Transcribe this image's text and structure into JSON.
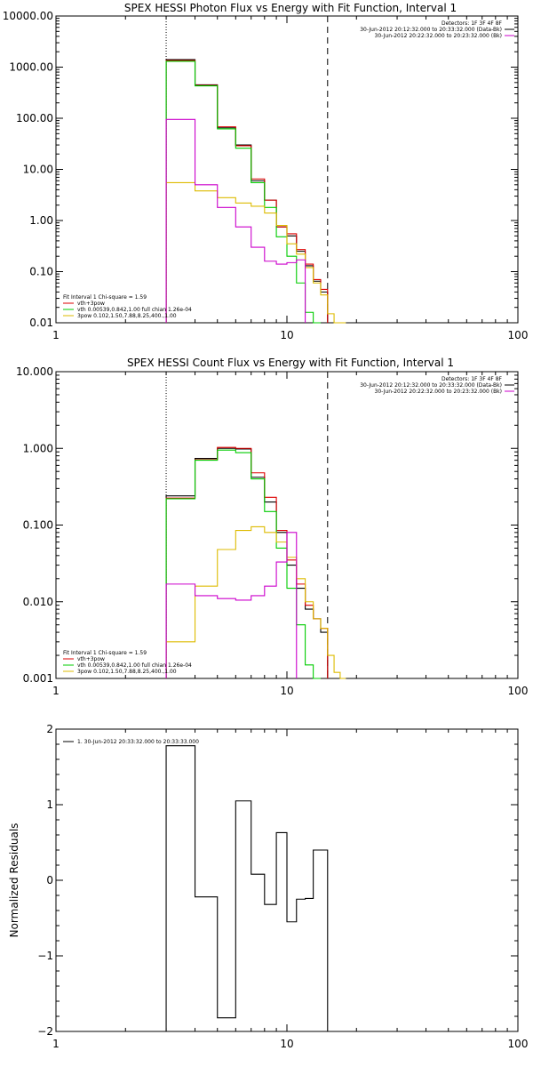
{
  "chart_data": [
    {
      "type": "line",
      "title": "SPEX HESSI Photon Flux vs Energy with Fit Function, Interval 1",
      "xlabel": "",
      "ylabel": "",
      "xscale": "log",
      "yscale": "log",
      "xlim": [
        1,
        100
      ],
      "ylim": [
        0.01,
        10000
      ],
      "x_ticks": [
        {
          "v": 1,
          "label": "1"
        },
        {
          "v": 10,
          "label": "10"
        },
        {
          "v": 100,
          "label": "100"
        }
      ],
      "y_ticks": [
        {
          "v": 0.01,
          "label": "0.01"
        },
        {
          "v": 0.1,
          "label": "0.10"
        },
        {
          "v": 1,
          "label": "1.00"
        },
        {
          "v": 10,
          "label": "10.00"
        },
        {
          "v": 100,
          "label": "100.00"
        },
        {
          "v": 1000,
          "label": "1000.00"
        },
        {
          "v": 10000,
          "label": "10000.00"
        }
      ],
      "vlines": [
        {
          "x": 3,
          "style": "dotted"
        },
        {
          "x": 15,
          "style": "dashed"
        }
      ],
      "legend_right": [
        {
          "text": "Detectors: 1F 3F 4F 8F",
          "color": ""
        },
        {
          "text": "30-Jun-2012 20:12:32.000 to 20:33:32.000 (Data-Bk)",
          "color": "#000000"
        },
        {
          "text": "30-Jun-2012 20:22:32.000 to 20:23:32.000 (Bk)",
          "color": "#cc00cc"
        }
      ],
      "legend_left": [
        {
          "text": "Fit Interval 1    Chi-square = 1.59",
          "color": ""
        },
        {
          "text": "vth+3pow",
          "color": "#dd0000"
        },
        {
          "text": "vth 0.00539,0.842,1.00   full chian 1.26e-04",
          "color": "#00cc00"
        },
        {
          "text": "3pow 0.102,1.50,7.88,8.25,400.,1.00",
          "color": "#ddbb00"
        }
      ],
      "bin_edges": [
        3,
        4,
        5,
        6,
        7,
        8,
        9,
        10,
        11,
        12,
        13,
        14,
        15,
        16,
        17,
        18
      ],
      "series": [
        {
          "name": "",
          "color": "#000000",
          "values": [
            1400,
            450,
            65,
            30,
            6,
            2.5,
            0.75,
            0.5,
            0.25,
            0.13,
            0.065,
            0.04,
            null,
            null,
            null
          ]
        },
        {
          "name": "vth+3pow",
          "color": "#dd0000",
          "values": [
            1350,
            440,
            68,
            29,
            6.5,
            2.5,
            0.75,
            0.55,
            0.27,
            0.14,
            0.07,
            0.045,
            null,
            null,
            null
          ]
        },
        {
          "name": "vth",
          "color": "#00cc00",
          "values": [
            1300,
            430,
            62,
            26,
            5.5,
            1.8,
            0.48,
            0.2,
            0.06,
            0.016,
            0.004,
            null,
            null,
            null,
            null
          ]
        },
        {
          "name": "3pow",
          "color": "#ddbb00",
          "values": [
            5.5,
            3.8,
            2.8,
            2.2,
            1.9,
            1.4,
            0.8,
            0.35,
            0.22,
            0.12,
            0.06,
            0.035,
            0.015,
            0.008,
            0.005
          ]
        },
        {
          "name": "",
          "color": "#cc00cc",
          "values": [
            95,
            5,
            1.8,
            0.75,
            0.3,
            0.16,
            0.14,
            0.15,
            0.17,
            null,
            null,
            null,
            null,
            null,
            null
          ]
        }
      ]
    },
    {
      "type": "line",
      "title": "SPEX HESSI Count Flux vs Energy with Fit Function, Interval 1",
      "xlabel": "",
      "ylabel": "",
      "xscale": "log",
      "yscale": "log",
      "xlim": [
        1,
        100
      ],
      "ylim": [
        0.001,
        10
      ],
      "x_ticks": [
        {
          "v": 1,
          "label": "1"
        },
        {
          "v": 10,
          "label": "10"
        },
        {
          "v": 100,
          "label": "100"
        }
      ],
      "y_ticks": [
        {
          "v": 0.001,
          "label": "0.001"
        },
        {
          "v": 0.01,
          "label": "0.010"
        },
        {
          "v": 0.1,
          "label": "0.100"
        },
        {
          "v": 1,
          "label": "1.000"
        },
        {
          "v": 10,
          "label": "10.000"
        }
      ],
      "vlines": [
        {
          "x": 3,
          "style": "dotted"
        },
        {
          "x": 15,
          "style": "dashed"
        }
      ],
      "legend_right": [
        {
          "text": "Detectors: 1F 3F 4F 8F",
          "color": ""
        },
        {
          "text": "30-Jun-2012 20:12:32.000 to 20:33:32.000 (Data-Bk)",
          "color": "#000000"
        },
        {
          "text": "30-Jun-2012 20:22:32.000 to 20:23:32.000 (Bk)",
          "color": "#cc00cc"
        }
      ],
      "legend_left": [
        {
          "text": "Fit Interval 1    Chi-square = 1.59",
          "color": ""
        },
        {
          "text": "vth+3pow",
          "color": "#dd0000"
        },
        {
          "text": "vth 0.00539,0.842,1.00   full chian 1.26e-04",
          "color": "#00cc00"
        },
        {
          "text": "3pow 0.102,1.50,7.88,8.25,400.,1.00",
          "color": "#ddbb00"
        }
      ],
      "bin_edges": [
        3,
        4,
        5,
        6,
        7,
        8,
        9,
        10,
        11,
        12,
        13,
        14,
        15,
        16,
        17,
        18
      ],
      "series": [
        {
          "name": "",
          "color": "#000000",
          "values": [
            0.24,
            0.74,
            1.0,
            0.98,
            0.42,
            0.2,
            0.08,
            0.03,
            0.015,
            0.008,
            0.006,
            0.004,
            null,
            null,
            null
          ]
        },
        {
          "name": "vth+3pow",
          "color": "#dd0000",
          "values": [
            0.225,
            0.71,
            1.03,
            1.0,
            0.48,
            0.23,
            0.085,
            0.035,
            0.017,
            0.009,
            0.006,
            0.0045,
            null,
            null,
            null
          ]
        },
        {
          "name": "vth",
          "color": "#00cc00",
          "values": [
            0.22,
            0.7,
            0.95,
            0.88,
            0.4,
            0.15,
            0.05,
            0.015,
            0.005,
            0.0015,
            0.00065,
            null,
            null,
            null,
            null
          ]
        },
        {
          "name": "3pow",
          "color": "#ddbb00",
          "values": [
            0.003,
            0.016,
            0.048,
            0.085,
            0.095,
            0.08,
            0.06,
            0.038,
            0.02,
            0.01,
            0.006,
            0.0045,
            0.002,
            0.0012,
            0.001
          ]
        },
        {
          "name": "",
          "color": "#cc00cc",
          "values": [
            0.017,
            0.012,
            0.011,
            0.0105,
            0.012,
            0.016,
            0.033,
            0.08,
            null,
            null,
            null,
            null,
            null,
            null,
            null
          ]
        }
      ]
    },
    {
      "type": "line",
      "title": "",
      "xlabel": "",
      "ylabel": "Normalized Residuals",
      "xscale": "log",
      "yscale": "linear",
      "xlim": [
        1,
        100
      ],
      "ylim": [
        -2,
        2
      ],
      "x_ticks": [
        {
          "v": 1,
          "label": "1"
        },
        {
          "v": 10,
          "label": "10"
        },
        {
          "v": 100,
          "label": "100"
        }
      ],
      "y_ticks": [
        {
          "v": -2,
          "label": "−2"
        },
        {
          "v": -1,
          "label": "−1"
        },
        {
          "v": 0,
          "label": "0"
        },
        {
          "v": 1,
          "label": "1"
        },
        {
          "v": 2,
          "label": "2"
        }
      ],
      "legend_right": [],
      "legend_left": [
        {
          "text": "1. 30-Jun-2012 20:33:32.000 to 20:33:33.000",
          "color": "#000000"
        }
      ],
      "bin_edges": [
        3,
        4,
        5,
        6,
        7,
        8,
        9,
        10,
        11,
        12,
        13,
        14,
        15
      ],
      "series": [
        {
          "name": "",
          "color": "#000000",
          "values": [
            1.78,
            -0.22,
            -1.82,
            1.05,
            0.08,
            -0.32,
            0.63,
            -0.55,
            -0.25,
            -0.24,
            0.4
          ],
          "edges": [
            3,
            4,
            5,
            6,
            7,
            8,
            9,
            10,
            11,
            12,
            13,
            15
          ]
        }
      ]
    }
  ]
}
